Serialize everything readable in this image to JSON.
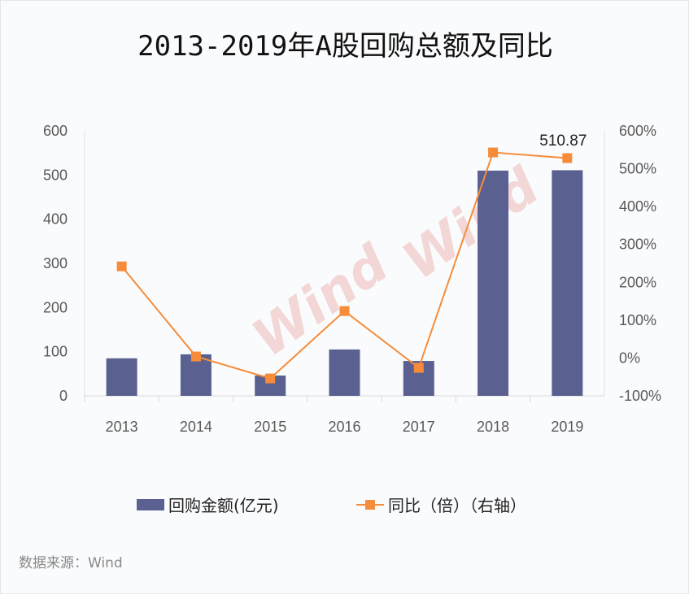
{
  "chart_data": {
    "type": "bar+line",
    "title": "2013-2019年A股回购总额及同比",
    "categories": [
      "2013",
      "2014",
      "2015",
      "2016",
      "2017",
      "2018",
      "2019"
    ],
    "series": [
      {
        "name": "回购金额(亿元)",
        "type": "bar",
        "axis": "left",
        "color": "#5a6190",
        "values": [
          85,
          94,
          46,
          105,
          79,
          510,
          510.87
        ]
      },
      {
        "name": "同比（倍）（右轴）",
        "type": "line",
        "axis": "right",
        "color": "#f68c3a",
        "values": [
          242,
          4,
          -54,
          124,
          -26,
          543,
          528
        ]
      }
    ],
    "data_labels": [
      {
        "category": "2019",
        "text": "510.87"
      }
    ],
    "left_axis": {
      "ylim": [
        0,
        600
      ],
      "ticks": [
        "0",
        "100",
        "200",
        "300",
        "400",
        "500",
        "600"
      ]
    },
    "right_axis": {
      "ylim": [
        -100,
        600
      ],
      "ticks": [
        "-100%",
        "0%",
        "100%",
        "200%",
        "300%",
        "400%",
        "500%",
        "600%"
      ]
    },
    "grid": false,
    "legend": "bottom",
    "watermark": "Wind"
  },
  "source": "数据来源：Wind"
}
